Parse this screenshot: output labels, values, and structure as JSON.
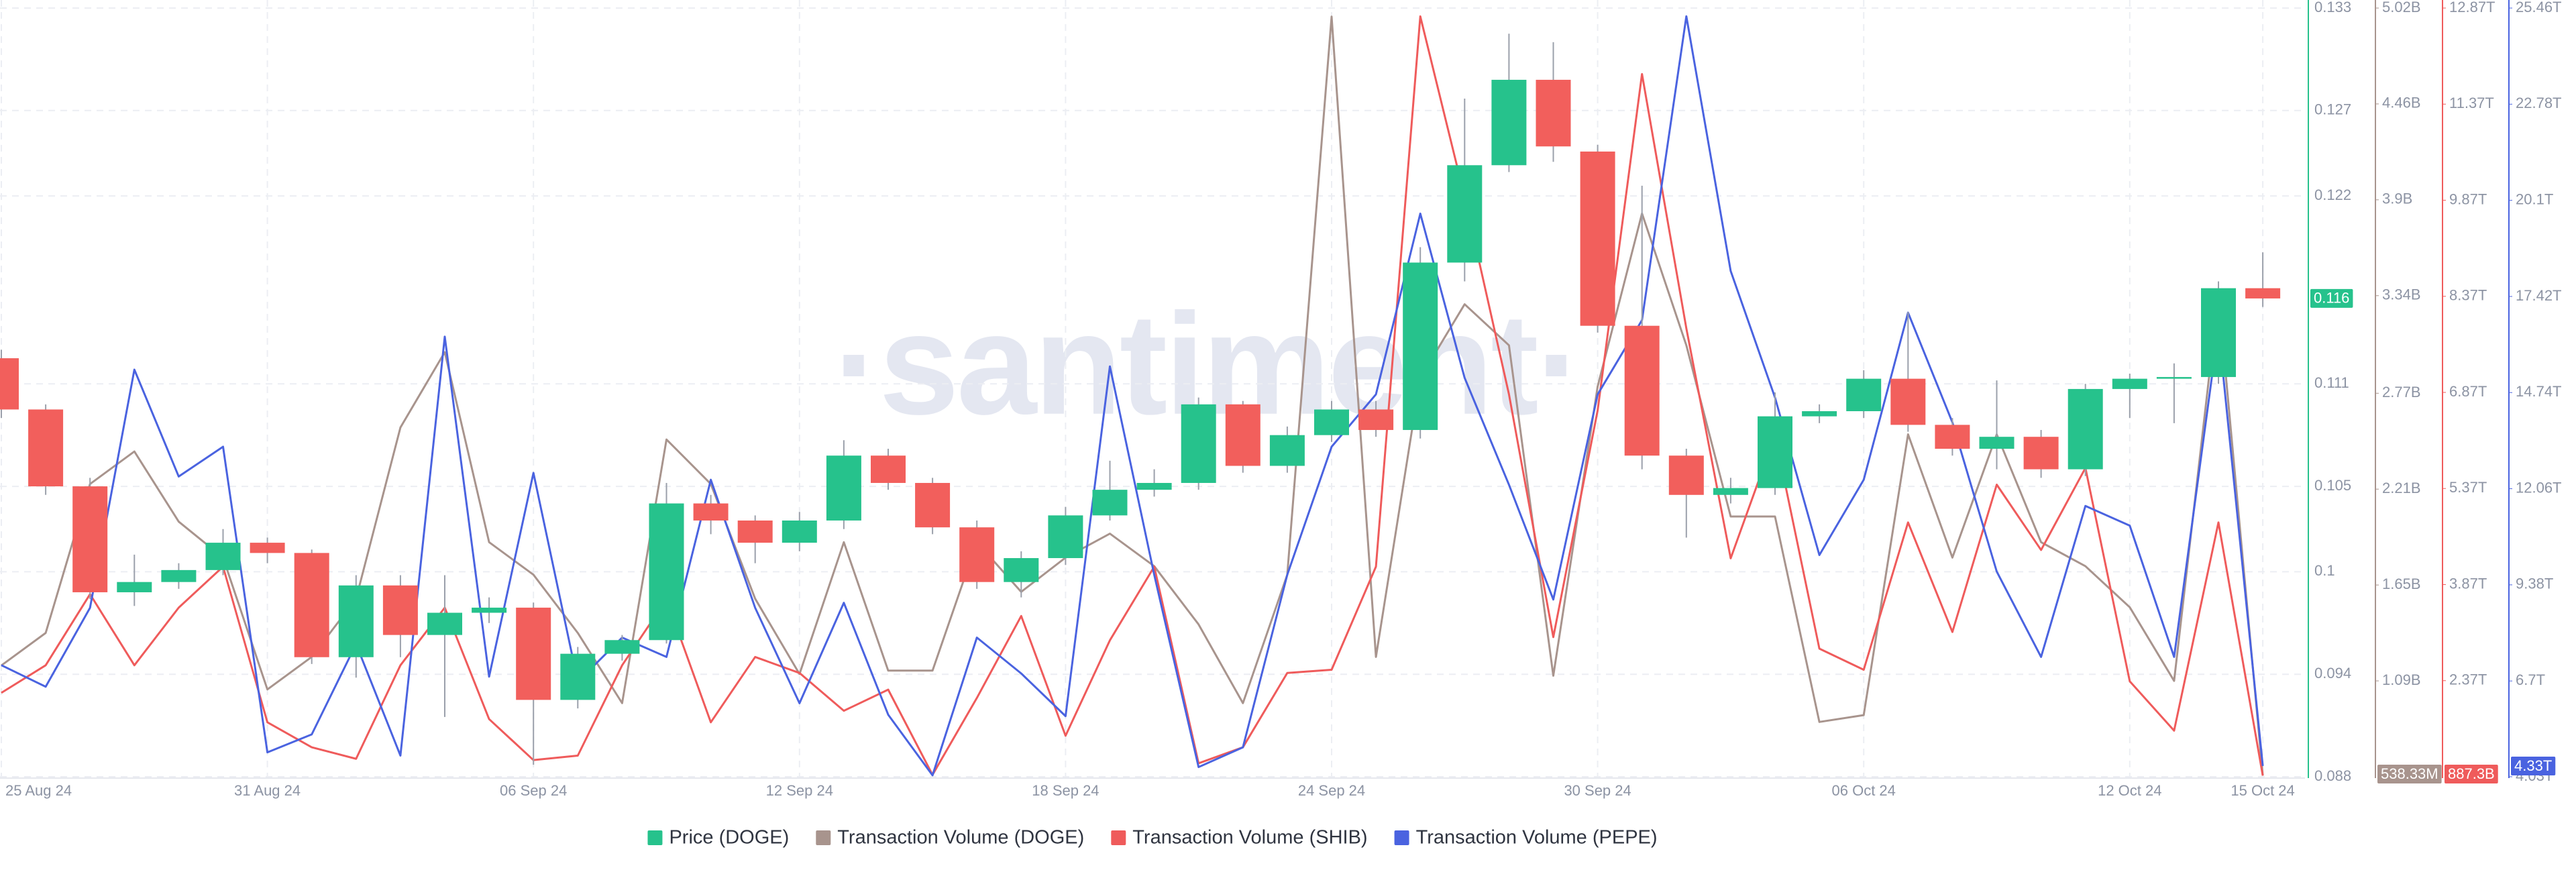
{
  "chart_data": {
    "type": "candlestick",
    "watermark": "·santiment·",
    "name": "Price (DOGE)",
    "up_color": "#26c28c",
    "down_color": "#f25f5c",
    "axis_color": "#26c28c",
    "grid": true,
    "categories": [
      "25 Aug 24",
      null,
      null,
      null,
      null,
      null,
      "31 Aug 24",
      null,
      null,
      null,
      null,
      null,
      "06 Sep 24",
      null,
      null,
      null,
      null,
      null,
      "12 Sep 24",
      null,
      null,
      null,
      null,
      null,
      "18 Sep 24",
      null,
      null,
      null,
      null,
      null,
      "24 Sep 24",
      null,
      null,
      null,
      null,
      null,
      "30 Sep 24",
      null,
      null,
      null,
      null,
      null,
      "06 Oct 24",
      null,
      null,
      null,
      null,
      null,
      "12 Oct 24",
      null,
      null,
      "15 Oct 24"
    ],
    "open": [
      0.1125,
      0.1095,
      0.105,
      0.0988,
      0.0994,
      0.1001,
      0.1017,
      0.1011,
      0.095,
      0.0992,
      0.0963,
      0.0976,
      0.0979,
      0.0925,
      0.0952,
      0.096,
      0.104,
      0.103,
      0.1017,
      0.103,
      0.1068,
      0.1052,
      0.1026,
      0.0994,
      0.1008,
      0.1033,
      0.1048,
      0.1052,
      0.1098,
      0.1062,
      0.108,
      0.1095,
      0.1083,
      0.1181,
      0.1238,
      0.1288,
      0.1246,
      0.1144,
      0.1068,
      0.1045,
      0.1049,
      0.1091,
      0.1094,
      0.1113,
      0.1086,
      0.1072,
      0.1079,
      0.106,
      0.1107,
      0.1113,
      0.1114,
      0.1166
    ],
    "high": [
      0.113,
      0.1098,
      0.1055,
      0.101,
      0.1005,
      0.1025,
      0.102,
      0.1013,
      0.0998,
      0.0998,
      0.0998,
      0.0985,
      0.0982,
      0.0956,
      0.0963,
      0.1052,
      0.1045,
      0.1033,
      0.1035,
      0.1077,
      0.1072,
      0.1055,
      0.103,
      0.1012,
      0.1038,
      0.1065,
      0.106,
      0.1102,
      0.11,
      0.1085,
      0.11,
      0.11,
      0.119,
      0.1277,
      0.1315,
      0.131,
      0.125,
      0.1226,
      0.1072,
      0.1055,
      0.1105,
      0.1098,
      0.1118,
      0.1152,
      0.109,
      0.1112,
      0.1083,
      0.111,
      0.1116,
      0.1122,
      0.117,
      0.1187
    ],
    "low": [
      0.109,
      0.1045,
      0.0984,
      0.098,
      0.099,
      0.0998,
      0.1005,
      0.0946,
      0.0938,
      0.095,
      0.0915,
      0.097,
      0.0887,
      0.092,
      0.0948,
      0.0958,
      0.1022,
      0.1005,
      0.1012,
      0.1025,
      0.1048,
      0.1022,
      0.099,
      0.0985,
      0.1004,
      0.103,
      0.1044,
      0.1048,
      0.1058,
      0.1058,
      0.1076,
      0.1079,
      0.1078,
      0.117,
      0.1234,
      0.124,
      0.114,
      0.106,
      0.102,
      0.104,
      0.1045,
      0.1087,
      0.109,
      0.1082,
      0.1068,
      0.106,
      0.1055,
      0.1056,
      0.109,
      0.1087,
      0.111,
      0.1155
    ],
    "close": [
      0.1095,
      0.105,
      0.0988,
      0.0994,
      0.1001,
      0.1017,
      0.1011,
      0.095,
      0.0992,
      0.0963,
      0.0976,
      0.0979,
      0.0925,
      0.0952,
      0.096,
      0.104,
      0.103,
      0.1017,
      0.103,
      0.1068,
      0.1052,
      0.1026,
      0.0994,
      0.1008,
      0.1033,
      0.1048,
      0.1052,
      0.1098,
      0.1062,
      0.108,
      0.1095,
      0.1083,
      0.1181,
      0.1238,
      0.1288,
      0.1249,
      0.1144,
      0.1068,
      0.1045,
      0.1049,
      0.1091,
      0.1094,
      0.1113,
      0.1086,
      0.1072,
      0.1079,
      0.106,
      0.1107,
      0.1113,
      0.1114,
      0.1166,
      0.116
    ],
    "last_label": "0.116",
    "ylim": [
      0.088,
      0.133
    ],
    "yticks": [
      0.088,
      0.094,
      0.1,
      0.105,
      0.111,
      0.122,
      0.127,
      0.133
    ],
    "series": [
      {
        "name": "Transaction Volume (DOGE)",
        "type": "line",
        "axis": "y2",
        "color": "#a8948d",
        "values": [
          1180000000.0,
          1370000000.0,
          2240000000.0,
          2430000000.0,
          2020000000.0,
          1810000000.0,
          1040000000.0,
          1230000000.0,
          1570000000.0,
          2570000000.0,
          3010000000.0,
          1900000000.0,
          1710000000.0,
          1370000000.0,
          960000000.0,
          2500000000.0,
          2240000000.0,
          1570000000.0,
          1130000000.0,
          1900000000.0,
          1150000000.0,
          1150000000.0,
          1900000000.0,
          1610000000.0,
          1810000000.0,
          1950000000.0,
          1760000000.0,
          1420000000.0,
          960000000.0,
          1710000000.0,
          4970000000.0,
          1230000000.0,
          2860000000.0,
          3290000000.0,
          3050000000.0,
          1120000000.0,
          2810000000.0,
          3820000000.0,
          3050000000.0,
          2050000000.0,
          2050000000.0,
          850000000.0,
          890000000.0,
          2530000000.0,
          1810000000.0,
          2530000000.0,
          1900000000.0,
          1760000000.0,
          1520000000.0,
          1090000000.0,
          3340000000.0,
          538330000
        ],
        "last_label": "538.33M",
        "lim": [
          530000000.0,
          5020000000.0
        ],
        "ticks": [
          {
            "value": 1090000000.0,
            "label": "1.09B"
          },
          {
            "value": 1650000000.0,
            "label": "1.65B"
          },
          {
            "value": 2210000000.0,
            "label": "2.21B"
          },
          {
            "value": 2770000000.0,
            "label": "2.77B"
          },
          {
            "value": 3340000000.0,
            "label": "3.34B"
          },
          {
            "value": 3900000000.0,
            "label": "3.9B"
          },
          {
            "value": 4460000000.0,
            "label": "4.46B"
          },
          {
            "value": 5020000000.0,
            "label": "5.02B"
          }
        ]
      },
      {
        "name": "Transaction Volume (SHIB)",
        "type": "line",
        "axis": "y3",
        "color": "#ef5b5b",
        "values": [
          2180000000000.0,
          2610000000000.0,
          3720000000000.0,
          2610000000000.0,
          3510000000000.0,
          4150000000000.0,
          1720000000000.0,
          1330000000000.0,
          1150000000000.0,
          2610000000000.0,
          3510000000000.0,
          1770000000000.0,
          1130000000000.0,
          1200000000000.0,
          2610000000000.0,
          3640000000000.0,
          1720000000000.0,
          2740000000000.0,
          2490000000000.0,
          1900000000000.0,
          2230000000000.0,
          900000000000.0,
          2100000000000.0,
          3380000000000.0,
          1510000000000.0,
          3000000000000.0,
          4150000000000.0,
          1080000000000.0,
          1330000000000.0,
          2490000000000.0,
          2540000000000.0,
          4150000000000.0,
          12740000000000.0,
          9920000000000.0,
          6840000000000.0,
          3050000000000.0,
          6590000000000.0,
          11840000000000.0,
          7870000000000.0,
          4280000000000.0,
          6200000000000.0,
          2870000000000.0,
          2540000000000.0,
          4840000000000.0,
          3130000000000.0,
          5430000000000.0,
          4410000000000.0,
          5690000000000.0,
          2360000000000.0,
          1590000000000.0,
          4840000000000.0,
          887300000000.0
        ],
        "last_label": "887.3B",
        "lim": [
          870000000000.0,
          12870000000000.0
        ],
        "ticks": [
          {
            "value": 2370000000000.0,
            "label": "2.37T"
          },
          {
            "value": 3870000000000.0,
            "label": "3.87T"
          },
          {
            "value": 5370000000000.0,
            "label": "5.37T"
          },
          {
            "value": 6870000000000.0,
            "label": "6.87T"
          },
          {
            "value": 8370000000000.0,
            "label": "8.37T"
          },
          {
            "value": 9870000000000.0,
            "label": "9.87T"
          },
          {
            "value": 11370000000000.0,
            "label": "11.37T"
          },
          {
            "value": 12870000000000.0,
            "label": "12.87T"
          }
        ]
      },
      {
        "name": "Transaction Volume (PEPE)",
        "type": "line",
        "axis": "y4",
        "color": "#4a63e0",
        "values": [
          7140000000000.0,
          6540000000000.0,
          8740000000000.0,
          15380000000000.0,
          12400000000000.0,
          13230000000000.0,
          4710000000000.0,
          5210000000000.0,
          7730000000000.0,
          4620000000000.0,
          16300000000000.0,
          6820000000000.0,
          12500000000000.0,
          6680000000000.0,
          7910000000000.0,
          7370000000000.0,
          12310000000000.0,
          8740000000000.0,
          6080000000000.0,
          8880000000000.0,
          5760000000000.0,
          4070000000000.0,
          7910000000000.0,
          6910000000000.0,
          5720000000000.0,
          15470000000000.0,
          9660000000000.0,
          4300000000000.0,
          4850000000000.0,
          9660000000000.0,
          13230000000000.0,
          14690000000000.0,
          19730000000000.0,
          15150000000000.0,
          12170000000000.0,
          8970000000000.0,
          14690000000000.0,
          16760000000000.0,
          25230000000000.0,
          18130000000000.0,
          14600000000000.0,
          10210000000000.0,
          12310000000000.0,
          16970000000000.0,
          13910000000000.0,
          9750000000000.0,
          7370000000000.0,
          11580000000000.0,
          11030000000000.0,
          7370000000000.0,
          16530000000000.0,
          4330000000000.0
        ],
        "last_label": "4.33T",
        "lim": [
          4030000000000.0,
          25460000000000.0
        ],
        "ticks": [
          {
            "value": 4030000000000.0,
            "label": "4.03T"
          },
          {
            "value": 6700000000000.0,
            "label": "6.7T"
          },
          {
            "value": 9380000000000.0,
            "label": "9.38T"
          },
          {
            "value": 12060000000000.0,
            "label": "12.06T"
          },
          {
            "value": 14740000000000.0,
            "label": "14.74T"
          },
          {
            "value": 17420000000000.0,
            "label": "17.42T"
          },
          {
            "value": 20100000000000.0,
            "label": "20.1T"
          },
          {
            "value": 22780000000000.0,
            "label": "22.78T"
          },
          {
            "value": 25460000000000.0,
            "label": "25.46T"
          }
        ]
      }
    ]
  }
}
